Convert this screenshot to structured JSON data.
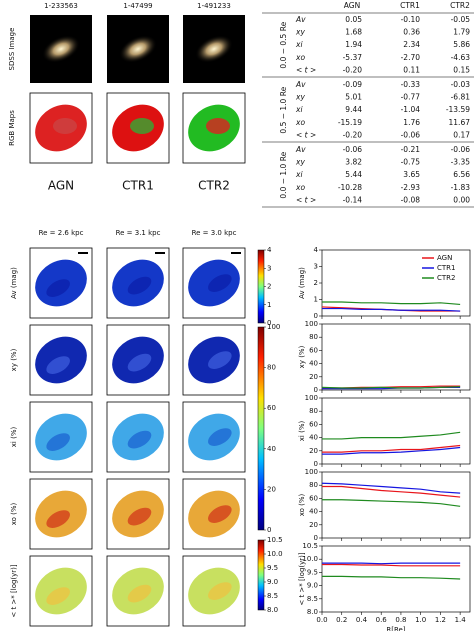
{
  "header": {
    "galaxy_ids": [
      "1-233563",
      "1-47499",
      "1-491233"
    ],
    "row_labels": [
      "SDSS Image",
      "RGB Maps"
    ],
    "class_labels": [
      "AGN",
      "CTR1",
      "CTR2"
    ],
    "class_colors": [
      "#e8151b",
      "#1515e0",
      "#1f8a1f"
    ],
    "re_labels": [
      "Re = 2.6 kpc",
      "Re = 3.1 kpc",
      "Re = 3.0 kpc"
    ]
  },
  "table": {
    "columns": [
      "AGN",
      "CTR1",
      "CTR2"
    ],
    "groups": [
      {
        "label": "0.0 − 0.5 Re",
        "rows": [
          [
            "Av",
            "0.05",
            "-0.10",
            "-0.05"
          ],
          [
            "xy",
            "1.68",
            "0.36",
            "1.79"
          ],
          [
            "xi",
            "1.94",
            "2.34",
            "5.86"
          ],
          [
            "xo",
            "-5.37",
            "-2.70",
            "-4.63"
          ],
          [
            "< t >",
            "-0.20",
            "0.11",
            "0.15"
          ]
        ]
      },
      {
        "label": "0.5 − 1.0 Re",
        "rows": [
          [
            "Av",
            "-0.09",
            "-0.33",
            "-0.03"
          ],
          [
            "xy",
            "5.01",
            "-0.77",
            "-6.81"
          ],
          [
            "xi",
            "9.44",
            "-1.04",
            "-13.59"
          ],
          [
            "xo",
            "-15.19",
            "1.76",
            "11.67"
          ],
          [
            "< t >",
            "-0.20",
            "-0.06",
            "0.17"
          ]
        ]
      },
      {
        "label": "0.0 − 1.0 Re",
        "rows": [
          [
            "Av",
            "-0.06",
            "-0.21",
            "-0.06"
          ],
          [
            "xy",
            "3.82",
            "-0.75",
            "-3.35"
          ],
          [
            "xi",
            "5.44",
            "3.65",
            "6.56"
          ],
          [
            "xo",
            "-10.28",
            "-2.93",
            "-1.83"
          ],
          [
            "< t >",
            "-0.14",
            "-0.08",
            "0.00"
          ]
        ]
      }
    ]
  },
  "maps": {
    "row_labels": [
      "Av (mag)",
      "xy (%)",
      "xi (%)",
      "xo (%)",
      "< t >* [log(yr)]"
    ],
    "colorbars": [
      {
        "lim": [
          0,
          4
        ],
        "ticks": [
          0,
          1,
          2,
          3,
          4
        ]
      },
      {
        "lim": [
          0,
          100
        ],
        "ticks": [
          0,
          20,
          40,
          60,
          80,
          100
        ]
      },
      {
        "lim": [
          8,
          10.5
        ],
        "ticks": [
          {
            "value": 8,
            "label": "8.0"
          },
          8.5,
          {
            "value": 9,
            "label": "9.0"
          },
          9.5,
          {
            "value": 10,
            "label": "10.0"
          },
          10.5
        ]
      }
    ]
  },
  "chart_data": [
    {
      "type": "line",
      "ylabel": "Av (mag)",
      "legend": "upper right",
      "x": [
        0,
        0.2,
        0.4,
        0.6,
        0.8,
        1,
        1.2,
        1.4
      ],
      "xlim": [
        0,
        1.5
      ],
      "xticks": [
        {
          "value": 0,
          "label": "0.0"
        },
        0.2,
        0.4,
        0.6,
        0.8,
        {
          "value": 1,
          "label": "1.0"
        },
        1.2,
        1.4
      ],
      "ylim": [
        0,
        4
      ],
      "yticks": [
        0,
        1,
        2,
        3,
        4
      ],
      "series": [
        {
          "name": "AGN",
          "color": "#e8151b",
          "values": [
            0.55,
            0.5,
            0.45,
            0.4,
            0.35,
            0.3,
            0.3,
            0.3
          ]
        },
        {
          "name": "CTR1",
          "color": "#1515e0",
          "values": [
            0.45,
            0.45,
            0.4,
            0.4,
            0.35,
            0.35,
            0.35,
            0.3
          ]
        },
        {
          "name": "CTR2",
          "color": "#1f8a1f",
          "values": [
            0.85,
            0.85,
            0.8,
            0.8,
            0.75,
            0.75,
            0.8,
            0.7
          ]
        }
      ]
    },
    {
      "type": "line",
      "ylabel": "xy (%)",
      "x": [
        0,
        0.2,
        0.4,
        0.6,
        0.8,
        1,
        1.2,
        1.4
      ],
      "xlim": [
        0,
        1.5
      ],
      "xticks": [
        {
          "value": 0,
          "label": "0.0"
        },
        0.2,
        0.4,
        0.6,
        0.8,
        {
          "value": 1,
          "label": "1.0"
        },
        1.2,
        1.4
      ],
      "ylim": [
        0,
        100
      ],
      "yticks": [
        0,
        20,
        40,
        60,
        80,
        100
      ],
      "series": [
        {
          "name": "AGN",
          "color": "#e8151b",
          "values": [
            3,
            3,
            4,
            4,
            5,
            5,
            6,
            6
          ]
        },
        {
          "name": "CTR1",
          "color": "#1515e0",
          "values": [
            2,
            2,
            2,
            2,
            3,
            3,
            4,
            4
          ]
        },
        {
          "name": "CTR2",
          "color": "#1f8a1f",
          "values": [
            4,
            3,
            3,
            4,
            3,
            3,
            4,
            5
          ]
        }
      ]
    },
    {
      "type": "line",
      "ylabel": "xi (%)",
      "x": [
        0,
        0.2,
        0.4,
        0.6,
        0.8,
        1,
        1.2,
        1.4
      ],
      "xlim": [
        0,
        1.5
      ],
      "xticks": [
        {
          "value": 0,
          "label": "0.0"
        },
        0.2,
        0.4,
        0.6,
        0.8,
        {
          "value": 1,
          "label": "1.0"
        },
        1.2,
        1.4
      ],
      "ylim": [
        0,
        100
      ],
      "yticks": [
        0,
        20,
        40,
        60,
        80,
        100
      ],
      "series": [
        {
          "name": "AGN",
          "color": "#e8151b",
          "values": [
            18,
            18,
            20,
            20,
            22,
            22,
            25,
            28
          ]
        },
        {
          "name": "CTR1",
          "color": "#1515e0",
          "values": [
            15,
            15,
            17,
            17,
            18,
            20,
            22,
            25
          ]
        },
        {
          "name": "CTR2",
          "color": "#1f8a1f",
          "values": [
            38,
            38,
            40,
            40,
            40,
            42,
            44,
            48
          ]
        }
      ]
    },
    {
      "type": "line",
      "ylabel": "xo (%)",
      "x": [
        0,
        0.2,
        0.4,
        0.6,
        0.8,
        1,
        1.2,
        1.4
      ],
      "xlim": [
        0,
        1.5
      ],
      "xticks": [
        {
          "value": 0,
          "label": "0.0"
        },
        0.2,
        0.4,
        0.6,
        0.8,
        {
          "value": 1,
          "label": "1.0"
        },
        1.2,
        1.4
      ],
      "ylim": [
        0,
        100
      ],
      "yticks": [
        0,
        20,
        40,
        60,
        80,
        100
      ],
      "series": [
        {
          "name": "AGN",
          "color": "#e8151b",
          "values": [
            78,
            78,
            75,
            72,
            70,
            68,
            65,
            62
          ]
        },
        {
          "name": "CTR1",
          "color": "#1515e0",
          "values": [
            83,
            82,
            80,
            78,
            76,
            74,
            70,
            68
          ]
        },
        {
          "name": "CTR2",
          "color": "#1f8a1f",
          "values": [
            58,
            58,
            57,
            56,
            55,
            54,
            52,
            48
          ]
        }
      ]
    },
    {
      "type": "line",
      "ylabel": "< t >* [log(yr)]",
      "xlabel": "R[Re]",
      "x": [
        0,
        0.2,
        0.4,
        0.6,
        0.8,
        1,
        1.2,
        1.4
      ],
      "xlim": [
        0,
        1.5
      ],
      "xticks": [
        {
          "value": 0,
          "label": "0.0"
        },
        0.2,
        0.4,
        0.6,
        0.8,
        {
          "value": 1,
          "label": "1.0"
        },
        1.2,
        1.4
      ],
      "ylim": [
        8,
        10.5
      ],
      "yticks": [
        {
          "value": 8,
          "label": "8.0"
        },
        8.5,
        {
          "value": 9,
          "label": "9.0"
        },
        9.5,
        {
          "value": 10,
          "label": "10.0"
        },
        10.5
      ],
      "series": [
        {
          "name": "AGN",
          "color": "#e8151b",
          "values": [
            9.8,
            9.8,
            9.78,
            9.78,
            9.75,
            9.75,
            9.75,
            9.75
          ]
        },
        {
          "name": "CTR1",
          "color": "#1515e0",
          "values": [
            9.85,
            9.85,
            9.85,
            9.83,
            9.85,
            9.85,
            9.85,
            9.85
          ]
        },
        {
          "name": "CTR2",
          "color": "#1f8a1f",
          "values": [
            9.35,
            9.35,
            9.33,
            9.33,
            9.3,
            9.3,
            9.28,
            9.25
          ]
        }
      ]
    }
  ]
}
